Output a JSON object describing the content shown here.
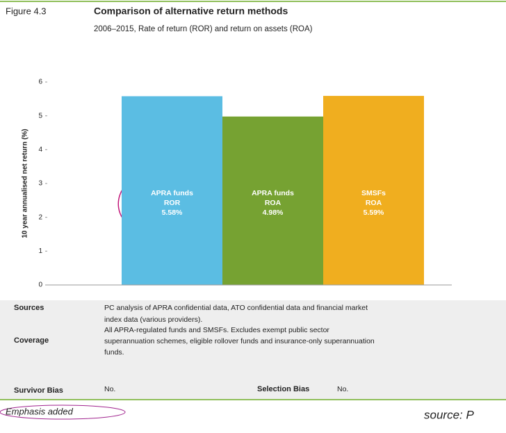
{
  "figure_label": "Figure 4.3",
  "chart_data": {
    "type": "bar",
    "title": "Comparison of alternative return methods",
    "subtitle": "2006–2015, Rate of return (ROR) and return on assets (ROA)",
    "y_label": "10 year annualised net return (%)",
    "categories": [
      "APRA funds",
      "APRA funds",
      "SMSFs"
    ],
    "measures": [
      "ROR",
      "ROA",
      "ROA"
    ],
    "values": [
      5.58,
      4.98,
      5.59
    ],
    "value_labels": [
      "5.58%",
      "4.98%",
      "5.59%"
    ],
    "colors": [
      "#5bbde3",
      "#76a232",
      "#f0ae1f"
    ],
    "ylim": [
      0,
      6
    ],
    "yticks": [
      0,
      1,
      2,
      3,
      4,
      5,
      6
    ],
    "grid": false
  },
  "notes": {
    "sources_label": "Sources",
    "sources_lines": [
      "PC analysis of APRA confidential data, ATO confidential data and financial market",
      "index data (various providers)."
    ],
    "coverage_label": "Coverage",
    "coverage_lines": [
      "All APRA-regulated funds and SMSFs. Excludes exempt public sector",
      "superannuation schemes, eligible rollover funds and insurance-only superannuation",
      "funds."
    ],
    "survivor_label": "Survivor Bias",
    "survivor_value": "No.",
    "selection_label": "Selection Bias",
    "selection_value": "No."
  },
  "emphasis": "Emphasis added",
  "source": "source: P"
}
